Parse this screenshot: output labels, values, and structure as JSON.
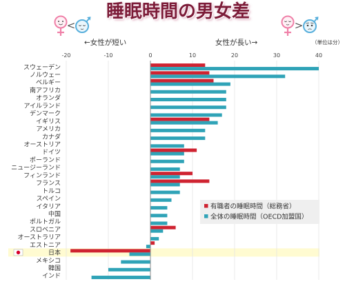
{
  "colors": {
    "title": "#7c1b38",
    "highlight": "#fffbd1",
    "flag_red": "#d7002a",
    "female_icon": "#ef7fa7",
    "male_icon": "#56aedb"
  },
  "icons": {
    "header_left": [
      "female-awake-icon",
      "male-sleeping-icon"
    ],
    "header_right": [
      "female-sleeping-icon",
      "male-worried-icon"
    ],
    "highlight_marker": "japan-flag-icon"
  },
  "header": {
    "left_comparator": "<",
    "right_comparator": ">"
  },
  "chart_data": {
    "type": "bar",
    "orientation": "horizontal",
    "title": "睡眠時間の男女差",
    "axis_annotations": {
      "left": "←女性が短い",
      "right": "女性が長い→"
    },
    "unit_label": "（単位は分）",
    "categories": [
      "スウェーデン",
      "ノルウェー",
      "ベルギー",
      "南アフリカ",
      "オランダ",
      "アイルランド",
      "デンマーク",
      "イギリス",
      "アメリカ",
      "カナダ",
      "オーストリア",
      "ドイツ",
      "ポーランド",
      "ニュージーランド",
      "フィンランド",
      "フランス",
      "トルコ",
      "スペイン",
      "イタリア",
      "中国",
      "ポルトガル",
      "スロベニア",
      "オーストラリア",
      "エストニア",
      "日本",
      "メキシコ",
      "韓国",
      "インド"
    ],
    "series": [
      {
        "name": "有職者の睡眠時間（総務省）",
        "color": "#cf2331",
        "values": [
          13,
          14,
          15,
          null,
          null,
          null,
          null,
          14,
          null,
          null,
          null,
          11,
          null,
          null,
          10,
          14,
          null,
          null,
          null,
          null,
          null,
          6,
          null,
          1,
          -19,
          null,
          null,
          null
        ]
      },
      {
        "name": "全体の睡眠時間（OECD加盟国）",
        "color": "#2fa3b7",
        "values": [
          40,
          32,
          19,
          18,
          18,
          18,
          17,
          16,
          13,
          13,
          8,
          8,
          8,
          7,
          7,
          7,
          7,
          5,
          4,
          4,
          4,
          3,
          2,
          -1,
          -5,
          -7,
          -10,
          -14
        ]
      }
    ],
    "xlim": [
      -20,
      40
    ],
    "xticks": [
      -20,
      -10,
      0,
      10,
      20,
      30,
      40
    ],
    "xtick_labels": [
      "-20",
      "-10",
      "0",
      "10",
      "20",
      "30",
      "40"
    ],
    "grid": true,
    "legend_position": "lower-right",
    "highlight": {
      "category_index": 24
    }
  }
}
